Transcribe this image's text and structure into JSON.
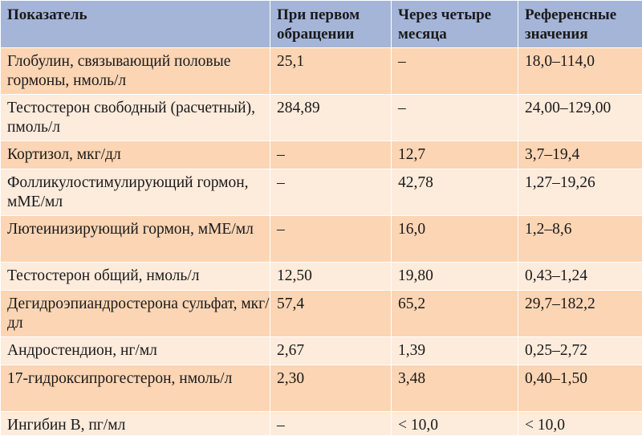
{
  "table": {
    "headers": [
      "Показатель",
      "При первом обращении",
      "Через четыре месяца",
      "Референсные значения"
    ],
    "rows": [
      [
        "Глобулин, связывающий половые гормоны, нмоль/л",
        "25,1",
        "–",
        "18,0–114,0"
      ],
      [
        "Тестостерон свободный (расчетный), пмоль/л",
        "284,89",
        "–",
        "24,00–129,00"
      ],
      [
        "Кортизол, мкг/дл",
        "–",
        "12,7",
        "3,7–19,4"
      ],
      [
        "Фолликулостимулирующий гормон, мМЕ/мл",
        "–",
        "42,78",
        "1,27–19,26"
      ],
      [
        "Лютеинизирующий гормон, мМЕ/мл",
        "–",
        "16,0",
        "1,2–8,6"
      ],
      [
        "Тестостерон общий, нмоль/л",
        "12,50",
        "19,80",
        "0,43–1,24"
      ],
      [
        "Дегидроэпиандростерона сульфат, мкг/дл",
        "57,4",
        "65,2",
        "29,7–182,2"
      ],
      [
        "Андростендион, нг/мл",
        "2,67",
        "1,39",
        "0,25–2,72"
      ],
      [
        "17-гидроксипрогестерон, нмоль/л",
        "2,30",
        "3,48",
        "0,40–1,50"
      ],
      [
        "Ингибин В, пг/мл",
        "–",
        "< 10,0",
        "< 10,0"
      ]
    ]
  }
}
